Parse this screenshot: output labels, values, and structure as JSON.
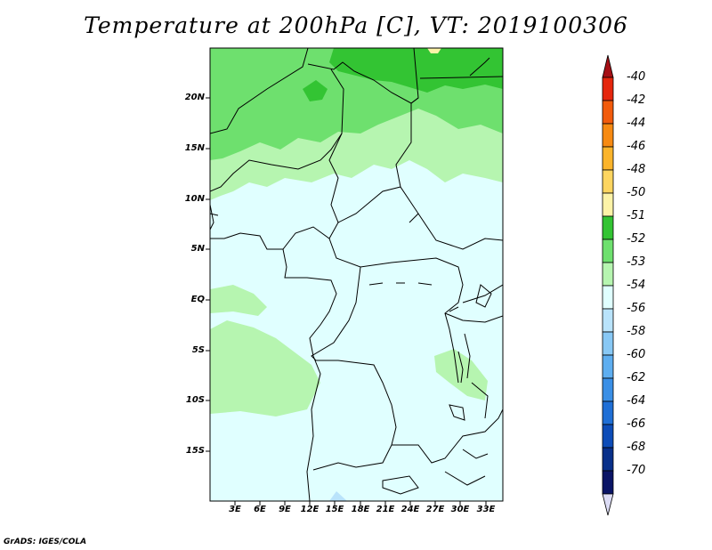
{
  "title": "Temperature at 200hPa [C], VT: 2019100306",
  "footer": "GrADS: IGES/COLA",
  "map": {
    "lat_labels": [
      "20N",
      "15N",
      "10N",
      "5N",
      "EQ",
      "5S",
      "10S",
      "15S"
    ],
    "lon_labels": [
      "3E",
      "6E",
      "9E",
      "12E",
      "15E",
      "18E",
      "21E",
      "24E",
      "27E",
      "30E",
      "33E"
    ]
  },
  "colorbar": {
    "levels": [
      "-40",
      "-42",
      "-44",
      "-46",
      "-48",
      "-50",
      "-51",
      "-52",
      "-53",
      "-54",
      "-56",
      "-58",
      "-60",
      "-62",
      "-64",
      "-66",
      "-68",
      "-70"
    ],
    "colors": [
      "#a50f15",
      "#e5260d",
      "#f25b0c",
      "#f78a12",
      "#fbb42b",
      "#fdd560",
      "#fdf3a7",
      "#33c433",
      "#6ee06e",
      "#b6f5b0",
      "#e0ffff",
      "#b9e3fb",
      "#88c8f5",
      "#5eaef0",
      "#3a8fe6",
      "#1f6fd6",
      "#0d4cb8",
      "#08308a",
      "#0a1466",
      "#dcdcf5"
    ]
  }
}
